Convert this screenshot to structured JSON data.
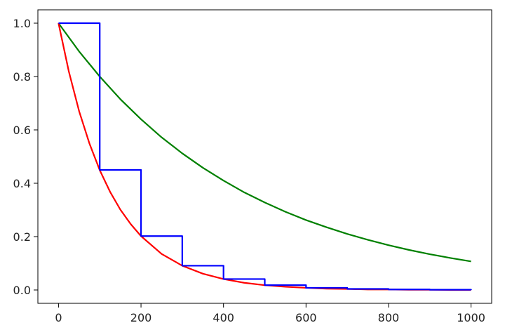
{
  "chart_data": {
    "type": "line",
    "title": "",
    "xlabel": "",
    "ylabel": "",
    "xlim": [
      -50,
      1050
    ],
    "ylim": [
      -0.05,
      1.05
    ],
    "grid": false,
    "x_ticks": [
      0,
      200,
      400,
      600,
      800,
      1000
    ],
    "x_tick_labels": [
      "0",
      "200",
      "400",
      "600",
      "800",
      "1000"
    ],
    "y_ticks": [
      0.0,
      0.2,
      0.4,
      0.6,
      0.8,
      1.0
    ],
    "y_tick_labels": [
      "0.0",
      "0.2",
      "0.4",
      "0.6",
      "0.8",
      "1.0"
    ],
    "series": [
      {
        "color": "#008000",
        "style": "line",
        "x": [
          0,
          50,
          100,
          150,
          200,
          250,
          300,
          350,
          400,
          450,
          500,
          550,
          600,
          650,
          700,
          750,
          800,
          850,
          900,
          950,
          1000
        ],
        "y": [
          1.0,
          0.894,
          0.8,
          0.715,
          0.64,
          0.572,
          0.512,
          0.458,
          0.41,
          0.366,
          0.328,
          0.293,
          0.262,
          0.235,
          0.21,
          0.188,
          0.168,
          0.15,
          0.134,
          0.12,
          0.107
        ]
      },
      {
        "color": "#ff0000",
        "style": "line",
        "x": [
          0,
          25,
          50,
          75,
          100,
          125,
          150,
          175,
          200,
          250,
          300,
          350,
          400,
          450,
          500,
          550,
          600,
          650,
          700,
          750,
          800,
          850,
          900,
          950,
          1000
        ],
        "y": [
          1.0,
          0.819,
          0.67,
          0.549,
          0.449,
          0.368,
          0.301,
          0.247,
          0.202,
          0.135,
          0.091,
          0.061,
          0.041,
          0.027,
          0.018,
          0.012,
          0.008,
          0.005,
          0.004,
          0.002,
          0.002,
          0.001,
          0.001,
          0.0,
          0.0
        ]
      },
      {
        "color": "#0000ff",
        "style": "step",
        "x": [
          0,
          100,
          200,
          300,
          400,
          500,
          600,
          700,
          800,
          900,
          1000
        ],
        "y": [
          1.0,
          0.45,
          0.202,
          0.091,
          0.041,
          0.018,
          0.008,
          0.004,
          0.002,
          0.001,
          0.0
        ]
      }
    ]
  }
}
